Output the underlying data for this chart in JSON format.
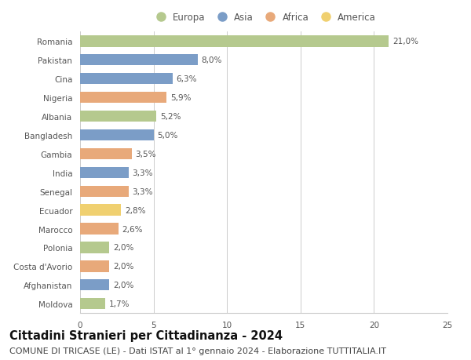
{
  "countries": [
    "Romania",
    "Pakistan",
    "Cina",
    "Nigeria",
    "Albania",
    "Bangladesh",
    "Gambia",
    "India",
    "Senegal",
    "Ecuador",
    "Marocco",
    "Polonia",
    "Costa d'Avorio",
    "Afghanistan",
    "Moldova"
  ],
  "values": [
    21.0,
    8.0,
    6.3,
    5.9,
    5.2,
    5.0,
    3.5,
    3.3,
    3.3,
    2.8,
    2.6,
    2.0,
    2.0,
    2.0,
    1.7
  ],
  "labels": [
    "21,0%",
    "8,0%",
    "6,3%",
    "5,9%",
    "5,2%",
    "5,0%",
    "3,5%",
    "3,3%",
    "3,3%",
    "2,8%",
    "2,6%",
    "2,0%",
    "2,0%",
    "2,0%",
    "1,7%"
  ],
  "continents": [
    "Europa",
    "Asia",
    "Asia",
    "Africa",
    "Europa",
    "Asia",
    "Africa",
    "Asia",
    "Africa",
    "America",
    "Africa",
    "Europa",
    "Africa",
    "Asia",
    "Europa"
  ],
  "continent_colors": {
    "Europa": "#b5c98e",
    "Asia": "#7b9dc7",
    "Africa": "#e8a97a",
    "America": "#f0d070"
  },
  "legend_order": [
    "Europa",
    "Asia",
    "Africa",
    "America"
  ],
  "title": "Cittadini Stranieri per Cittadinanza - 2024",
  "subtitle": "COMUNE DI TRICASE (LE) - Dati ISTAT al 1° gennaio 2024 - Elaborazione TUTTITALIA.IT",
  "xlim": [
    0,
    25
  ],
  "xticks": [
    0,
    5,
    10,
    15,
    20,
    25
  ],
  "background_color": "#ffffff",
  "grid_color": "#cccccc",
  "bar_height": 0.6,
  "title_fontsize": 10.5,
  "subtitle_fontsize": 8,
  "label_fontsize": 7.5,
  "tick_fontsize": 7.5,
  "legend_fontsize": 8.5
}
